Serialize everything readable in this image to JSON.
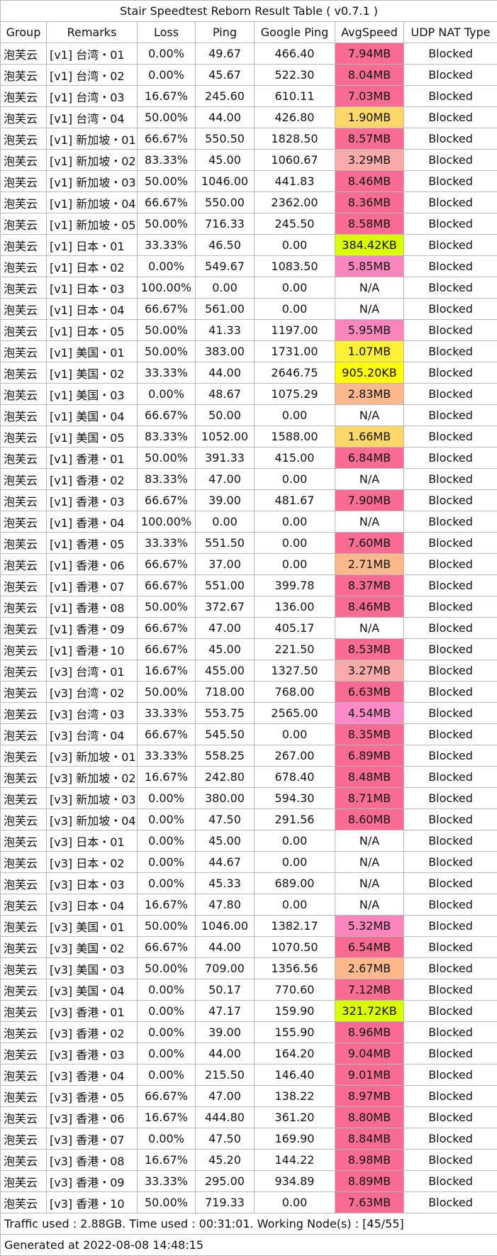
{
  "title": "Stair Speedtest Reborn Result Table ( v0.7.1 )",
  "columns": [
    "Group",
    "Remarks",
    "Loss",
    "Ping",
    "Google Ping",
    "AvgSpeed",
    "UDP NAT Type"
  ],
  "rows": [
    [
      "泡芙云",
      "[v1] 台湾・01",
      "0.00%",
      "49.67",
      "466.40",
      "7.94MB",
      "Blocked"
    ],
    [
      "泡芙云",
      "[v1] 台湾・02",
      "0.00%",
      "45.67",
      "522.30",
      "8.04MB",
      "Blocked"
    ],
    [
      "泡芙云",
      "[v1] 台湾・03",
      "16.67%",
      "245.60",
      "610.11",
      "7.03MB",
      "Blocked"
    ],
    [
      "泡芙云",
      "[v1] 台湾・04",
      "50.00%",
      "44.00",
      "426.80",
      "1.90MB",
      "Blocked"
    ],
    [
      "泡芙云",
      "[v1] 新加坡・01",
      "66.67%",
      "550.50",
      "1828.50",
      "8.57MB",
      "Blocked"
    ],
    [
      "泡芙云",
      "[v1] 新加坡・02",
      "83.33%",
      "45.00",
      "1060.67",
      "3.29MB",
      "Blocked"
    ],
    [
      "泡芙云",
      "[v1] 新加坡・03",
      "50.00%",
      "1046.00",
      "441.83",
      "8.46MB",
      "Blocked"
    ],
    [
      "泡芙云",
      "[v1] 新加坡・04",
      "66.67%",
      "550.00",
      "2362.00",
      "8.36MB",
      "Blocked"
    ],
    [
      "泡芙云",
      "[v1] 新加坡・05",
      "50.00%",
      "716.33",
      "245.50",
      "8.58MB",
      "Blocked"
    ],
    [
      "泡芙云",
      "[v1] 日本・01",
      "33.33%",
      "46.50",
      "0.00",
      "384.42KB",
      "Blocked"
    ],
    [
      "泡芙云",
      "[v1] 日本・02",
      "0.00%",
      "549.67",
      "1083.50",
      "5.85MB",
      "Blocked"
    ],
    [
      "泡芙云",
      "[v1] 日本・03",
      "100.00%",
      "0.00",
      "0.00",
      "N/A",
      "Blocked"
    ],
    [
      "泡芙云",
      "[v1] 日本・04",
      "66.67%",
      "561.00",
      "0.00",
      "N/A",
      "Blocked"
    ],
    [
      "泡芙云",
      "[v1] 日本・05",
      "50.00%",
      "41.33",
      "1197.00",
      "5.95MB",
      "Blocked"
    ],
    [
      "泡芙云",
      "[v1] 美国・01",
      "50.00%",
      "383.00",
      "1731.00",
      "1.07MB",
      "Blocked"
    ],
    [
      "泡芙云",
      "[v1] 美国・02",
      "33.33%",
      "44.00",
      "2646.75",
      "905.20KB",
      "Blocked"
    ],
    [
      "泡芙云",
      "[v1] 美国・03",
      "0.00%",
      "48.67",
      "1075.29",
      "2.83MB",
      "Blocked"
    ],
    [
      "泡芙云",
      "[v1] 美国・04",
      "66.67%",
      "50.00",
      "0.00",
      "N/A",
      "Blocked"
    ],
    [
      "泡芙云",
      "[v1] 美国・05",
      "83.33%",
      "1052.00",
      "1588.00",
      "1.66MB",
      "Blocked"
    ],
    [
      "泡芙云",
      "[v1] 香港・01",
      "50.00%",
      "391.33",
      "415.00",
      "6.84MB",
      "Blocked"
    ],
    [
      "泡芙云",
      "[v1] 香港・02",
      "83.33%",
      "47.00",
      "0.00",
      "N/A",
      "Blocked"
    ],
    [
      "泡芙云",
      "[v1] 香港・03",
      "66.67%",
      "39.00",
      "481.67",
      "7.90MB",
      "Blocked"
    ],
    [
      "泡芙云",
      "[v1] 香港・04",
      "100.00%",
      "0.00",
      "0.00",
      "N/A",
      "Blocked"
    ],
    [
      "泡芙云",
      "[v1] 香港・05",
      "33.33%",
      "551.50",
      "0.00",
      "7.60MB",
      "Blocked"
    ],
    [
      "泡芙云",
      "[v1] 香港・06",
      "66.67%",
      "37.00",
      "0.00",
      "2.71MB",
      "Blocked"
    ],
    [
      "泡芙云",
      "[v1] 香港・07",
      "66.67%",
      "551.00",
      "399.78",
      "8.37MB",
      "Blocked"
    ],
    [
      "泡芙云",
      "[v1] 香港・08",
      "50.00%",
      "372.67",
      "136.00",
      "8.46MB",
      "Blocked"
    ],
    [
      "泡芙云",
      "[v1] 香港・09",
      "66.67%",
      "47.00",
      "405.17",
      "N/A",
      "Blocked"
    ],
    [
      "泡芙云",
      "[v1] 香港・10",
      "66.67%",
      "45.00",
      "221.50",
      "8.53MB",
      "Blocked"
    ],
    [
      "泡芙云",
      "[v3] 台湾・01",
      "16.67%",
      "455.00",
      "1327.50",
      "3.27MB",
      "Blocked"
    ],
    [
      "泡芙云",
      "[v3] 台湾・02",
      "50.00%",
      "718.00",
      "768.00",
      "6.63MB",
      "Blocked"
    ],
    [
      "泡芙云",
      "[v3] 台湾・03",
      "33.33%",
      "553.75",
      "2565.00",
      "4.54MB",
      "Blocked"
    ],
    [
      "泡芙云",
      "[v3] 台湾・04",
      "66.67%",
      "545.50",
      "0.00",
      "8.35MB",
      "Blocked"
    ],
    [
      "泡芙云",
      "[v3] 新加坡・01",
      "33.33%",
      "558.25",
      "267.00",
      "6.89MB",
      "Blocked"
    ],
    [
      "泡芙云",
      "[v3] 新加坡・02",
      "16.67%",
      "242.80",
      "678.40",
      "8.48MB",
      "Blocked"
    ],
    [
      "泡芙云",
      "[v3] 新加坡・03",
      "0.00%",
      "380.00",
      "594.30",
      "8.71MB",
      "Blocked"
    ],
    [
      "泡芙云",
      "[v3] 新加坡・04",
      "0.00%",
      "47.50",
      "291.56",
      "8.60MB",
      "Blocked"
    ],
    [
      "泡芙云",
      "[v3] 日本・01",
      "0.00%",
      "45.00",
      "0.00",
      "N/A",
      "Blocked"
    ],
    [
      "泡芙云",
      "[v3] 日本・02",
      "0.00%",
      "44.67",
      "0.00",
      "N/A",
      "Blocked"
    ],
    [
      "泡芙云",
      "[v3] 日本・03",
      "0.00%",
      "45.33",
      "689.00",
      "N/A",
      "Blocked"
    ],
    [
      "泡芙云",
      "[v3] 日本・04",
      "16.67%",
      "47.80",
      "0.00",
      "N/A",
      "Blocked"
    ],
    [
      "泡芙云",
      "[v3] 美国・01",
      "50.00%",
      "1046.00",
      "1382.17",
      "5.32MB",
      "Blocked"
    ],
    [
      "泡芙云",
      "[v3] 美国・02",
      "66.67%",
      "44.00",
      "1070.50",
      "6.54MB",
      "Blocked"
    ],
    [
      "泡芙云",
      "[v3] 美国・03",
      "50.00%",
      "709.00",
      "1356.56",
      "2.67MB",
      "Blocked"
    ],
    [
      "泡芙云",
      "[v3] 美国・04",
      "0.00%",
      "50.17",
      "770.60",
      "7.12MB",
      "Blocked"
    ],
    [
      "泡芙云",
      "[v3] 香港・01",
      "0.00%",
      "47.17",
      "159.90",
      "321.72KB",
      "Blocked"
    ],
    [
      "泡芙云",
      "[v3] 香港・02",
      "0.00%",
      "39.00",
      "155.90",
      "8.96MB",
      "Blocked"
    ],
    [
      "泡芙云",
      "[v3] 香港・03",
      "0.00%",
      "44.00",
      "164.20",
      "9.04MB",
      "Blocked"
    ],
    [
      "泡芙云",
      "[v3] 香港・04",
      "0.00%",
      "215.50",
      "146.40",
      "9.01MB",
      "Blocked"
    ],
    [
      "泡芙云",
      "[v3] 香港・05",
      "66.67%",
      "47.00",
      "138.22",
      "8.97MB",
      "Blocked"
    ],
    [
      "泡芙云",
      "[v3] 香港・06",
      "16.67%",
      "444.80",
      "361.20",
      "8.80MB",
      "Blocked"
    ],
    [
      "泡芙云",
      "[v3] 香港・07",
      "0.00%",
      "47.50",
      "169.90",
      "8.84MB",
      "Blocked"
    ],
    [
      "泡芙云",
      "[v3] 香港・08",
      "16.67%",
      "45.20",
      "144.22",
      "8.98MB",
      "Blocked"
    ],
    [
      "泡芙云",
      "[v3] 香港・09",
      "33.33%",
      "295.00",
      "934.89",
      "8.89MB",
      "Blocked"
    ],
    [
      "泡芙云",
      "[v3] 香港・10",
      "50.00%",
      "719.33",
      "0.00",
      "7.63MB",
      "Blocked"
    ]
  ],
  "speed_colors": [
    "#fa6c93",
    "#fa6c93",
    "#fa6c93",
    "#fcd86a",
    "#fa6c93",
    "#f9abaa",
    "#fa6c93",
    "#fa6c93",
    "#fa6c93",
    "#d9ff00",
    "#fa86bd",
    "#ffffff",
    "#ffffff",
    "#fa86bd",
    "#fdf136",
    "#ffff00",
    "#fbb98d",
    "#ffffff",
    "#fcd86a",
    "#fa6c93",
    "#ffffff",
    "#fa6c93",
    "#ffffff",
    "#fa6c93",
    "#fbb98d",
    "#fa6c93",
    "#fa6c93",
    "#ffffff",
    "#fa6c93",
    "#f9abaa",
    "#fa6c93",
    "#fc8ac6",
    "#fa6c93",
    "#fa6c93",
    "#fa6c93",
    "#fa6c93",
    "#fa6c93",
    "#ffffff",
    "#ffffff",
    "#ffffff",
    "#ffffff",
    "#fa86bd",
    "#fa6c93",
    "#fbb98d",
    "#fa6c93",
    "#d9ff00",
    "#fa6c93",
    "#fa6c93",
    "#fa6c93",
    "#fa6c93",
    "#fa6c93",
    "#fa6c93",
    "#fa6c93",
    "#fa6c93",
    "#fa6c93"
  ],
  "footer": {
    "traffic": "Traffic used : 2.88GB. Time used : 00:31:01. Working Node(s) : [45/55]",
    "generated": "Generated at 2022-08-08 14:48:15"
  }
}
